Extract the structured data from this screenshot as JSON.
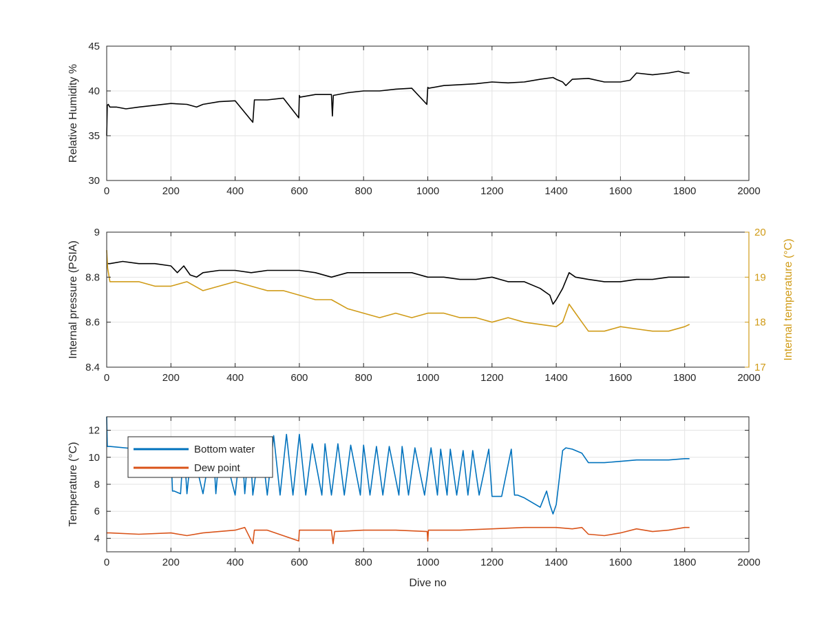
{
  "chart_data": [
    {
      "type": "line",
      "xlabel": "",
      "ylabel": "Relative Humidity %",
      "xlim": [
        0,
        2000
      ],
      "ylim": [
        30,
        45
      ],
      "xticks": [
        0,
        200,
        400,
        600,
        800,
        1000,
        1200,
        1400,
        1600,
        1800,
        2000
      ],
      "yticks": [
        30,
        35,
        40,
        45
      ],
      "grid": true,
      "series": [
        {
          "color": "#000000",
          "axis": "left",
          "x": [
            0,
            2,
            5,
            10,
            30,
            60,
            100,
            150,
            200,
            250,
            280,
            300,
            350,
            400,
            455,
            460,
            465,
            500,
            550,
            598,
            600,
            602,
            650,
            700,
            703,
            706,
            750,
            800,
            850,
            900,
            950,
            997,
            1000,
            1003,
            1050,
            1100,
            1150,
            1200,
            1250,
            1300,
            1350,
            1390,
            1400,
            1420,
            1430,
            1450,
            1500,
            1550,
            1600,
            1630,
            1650,
            1700,
            1750,
            1780,
            1800,
            1815
          ],
          "y": [
            35.0,
            38.4,
            38.5,
            38.2,
            38.2,
            38.0,
            38.2,
            38.4,
            38.6,
            38.5,
            38.2,
            38.5,
            38.8,
            38.9,
            36.5,
            39.0,
            39.0,
            39.0,
            39.2,
            37.0,
            39.5,
            39.3,
            39.6,
            39.6,
            37.2,
            39.5,
            39.8,
            40.0,
            40.0,
            40.2,
            40.3,
            38.5,
            40.4,
            40.3,
            40.6,
            40.7,
            40.8,
            41.0,
            40.9,
            41.0,
            41.3,
            41.5,
            41.3,
            41.0,
            40.6,
            41.3,
            41.4,
            41.0,
            41.0,
            41.2,
            42.0,
            41.8,
            42.0,
            42.2,
            42.0,
            42.0
          ]
        }
      ]
    },
    {
      "type": "line",
      "xlabel": "",
      "ylabel": "Internal pressure (PSIA)",
      "y2label": "Internal temperature (°C)",
      "xlim": [
        0,
        2000
      ],
      "ylim": [
        8.4,
        9
      ],
      "y2lim": [
        17,
        20
      ],
      "xticks": [
        0,
        200,
        400,
        600,
        800,
        1000,
        1200,
        1400,
        1600,
        1800,
        2000
      ],
      "yticks": [
        8.4,
        8.6,
        8.8,
        9
      ],
      "yticklabels": [
        "8.4",
        "8.6",
        "8.8",
        "9"
      ],
      "y2ticks": [
        17,
        18,
        19,
        20
      ],
      "grid": true,
      "series": [
        {
          "color": "#000000",
          "axis": "left",
          "x": [
            0,
            10,
            50,
            100,
            150,
            200,
            220,
            240,
            260,
            280,
            300,
            350,
            400,
            450,
            500,
            550,
            600,
            650,
            700,
            750,
            800,
            850,
            900,
            950,
            1000,
            1050,
            1100,
            1150,
            1200,
            1250,
            1300,
            1350,
            1380,
            1390,
            1400,
            1420,
            1440,
            1460,
            1500,
            1550,
            1600,
            1650,
            1700,
            1750,
            1800,
            1815
          ],
          "y": [
            8.86,
            8.86,
            8.87,
            8.86,
            8.86,
            8.85,
            8.82,
            8.85,
            8.81,
            8.8,
            8.82,
            8.83,
            8.83,
            8.82,
            8.83,
            8.83,
            8.83,
            8.82,
            8.8,
            8.82,
            8.82,
            8.82,
            8.82,
            8.82,
            8.8,
            8.8,
            8.79,
            8.79,
            8.8,
            8.78,
            8.78,
            8.75,
            8.72,
            8.68,
            8.7,
            8.75,
            8.82,
            8.8,
            8.79,
            8.78,
            8.78,
            8.79,
            8.79,
            8.8,
            8.8,
            8.8
          ]
        },
        {
          "color": "#d09b17",
          "axis": "right",
          "x": [
            0,
            3,
            10,
            50,
            100,
            150,
            200,
            250,
            300,
            350,
            400,
            450,
            500,
            550,
            600,
            650,
            700,
            750,
            800,
            850,
            900,
            950,
            1000,
            1050,
            1100,
            1150,
            1200,
            1250,
            1300,
            1350,
            1400,
            1420,
            1440,
            1460,
            1480,
            1500,
            1550,
            1600,
            1650,
            1700,
            1750,
            1800,
            1815
          ],
          "y": [
            19.6,
            19.2,
            18.9,
            18.9,
            18.9,
            18.8,
            18.8,
            18.9,
            18.7,
            18.8,
            18.9,
            18.8,
            18.7,
            18.7,
            18.6,
            18.5,
            18.5,
            18.3,
            18.2,
            18.1,
            18.2,
            18.1,
            18.2,
            18.2,
            18.1,
            18.1,
            18.0,
            18.1,
            18.0,
            17.95,
            17.9,
            18.0,
            18.4,
            18.2,
            18.0,
            17.8,
            17.8,
            17.9,
            17.85,
            17.8,
            17.8,
            17.9,
            17.95
          ]
        }
      ]
    },
    {
      "type": "line",
      "xlabel": "Dive no",
      "ylabel": "Temperature (°C)",
      "xlim": [
        0,
        2000
      ],
      "ylim": [
        3,
        13
      ],
      "xticks": [
        0,
        200,
        400,
        600,
        800,
        1000,
        1200,
        1400,
        1600,
        1800,
        2000
      ],
      "yticks": [
        4,
        6,
        8,
        10,
        12
      ],
      "grid": true,
      "legend_position": "top-left",
      "series": [
        {
          "name": "Bottom water",
          "color": "#0072bd",
          "axis": "left",
          "x": [
            0,
            2,
            10,
            100,
            200,
            205,
            210,
            230,
            240,
            250,
            265,
            300,
            330,
            340,
            355,
            400,
            420,
            430,
            445,
            455,
            480,
            500,
            520,
            540,
            560,
            580,
            600,
            620,
            640,
            670,
            680,
            700,
            720,
            740,
            760,
            790,
            800,
            820,
            840,
            860,
            880,
            910,
            920,
            940,
            960,
            990,
            1010,
            1030,
            1040,
            1060,
            1070,
            1090,
            1110,
            1125,
            1140,
            1160,
            1190,
            1200,
            1230,
            1260,
            1270,
            1280,
            1300,
            1350,
            1370,
            1380,
            1390,
            1400,
            1420,
            1430,
            1450,
            1480,
            1500,
            1550,
            1600,
            1650,
            1700,
            1750,
            1800,
            1815
          ],
          "y": [
            13,
            10.8,
            10.8,
            10.6,
            10.5,
            7.5,
            7.5,
            7.3,
            11.0,
            7.3,
            10.8,
            7.3,
            11.5,
            7.3,
            11.5,
            7.2,
            11.5,
            7.3,
            11.5,
            7.2,
            11.5,
            7.2,
            11.6,
            7.2,
            11.7,
            7.2,
            11.7,
            7.2,
            11.0,
            7.2,
            11.0,
            7.2,
            11.0,
            7.2,
            10.9,
            7.2,
            10.9,
            7.2,
            10.8,
            7.2,
            10.8,
            7.2,
            10.8,
            7.2,
            10.7,
            7.2,
            10.7,
            7.2,
            10.6,
            7.2,
            10.6,
            7.2,
            10.5,
            7.2,
            10.5,
            7.2,
            10.6,
            7.1,
            7.1,
            10.6,
            7.2,
            7.2,
            7.0,
            6.3,
            7.5,
            6.5,
            5.8,
            6.5,
            10.5,
            10.7,
            10.6,
            10.3,
            9.6,
            9.6,
            9.7,
            9.8,
            9.8,
            9.8,
            9.9,
            9.9
          ]
        },
        {
          "name": "Dew point",
          "color": "#d95319",
          "axis": "left",
          "x": [
            0,
            10,
            100,
            200,
            250,
            300,
            400,
            430,
            455,
            460,
            500,
            598,
            600,
            700,
            705,
            710,
            800,
            900,
            998,
            1000,
            1002,
            1100,
            1200,
            1300,
            1400,
            1450,
            1480,
            1500,
            1550,
            1600,
            1650,
            1700,
            1750,
            1800,
            1815
          ],
          "y": [
            4.4,
            4.4,
            4.3,
            4.4,
            4.2,
            4.4,
            4.6,
            4.8,
            3.6,
            4.6,
            4.6,
            3.8,
            4.6,
            4.6,
            3.6,
            4.5,
            4.6,
            4.6,
            4.5,
            3.8,
            4.6,
            4.6,
            4.7,
            4.8,
            4.8,
            4.7,
            4.8,
            4.3,
            4.2,
            4.4,
            4.7,
            4.5,
            4.6,
            4.8,
            4.8
          ]
        }
      ]
    }
  ]
}
